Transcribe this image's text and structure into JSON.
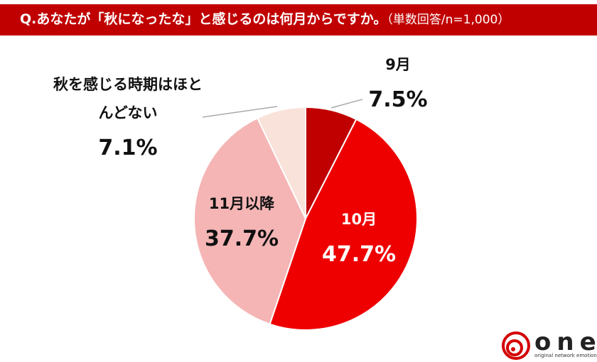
{
  "chart_data": {
    "type": "pie",
    "title": "Q.あなたが「秋になったな」と感じるのは何月からですか。",
    "subtitle": "（単数回答/n=1,000）",
    "categories": [
      "9月",
      "10月",
      "11月以降",
      "秋を感じる時期はほとんどない"
    ],
    "values": [
      7.5,
      47.7,
      37.7,
      7.1
    ],
    "value_labels": [
      "7.5%",
      "47.7%",
      "37.7%",
      "7.1%"
    ],
    "colors": [
      "#c00000",
      "#ee0000",
      "#f5b5b5",
      "#f9e2d9"
    ]
  },
  "logo": {
    "name": "one",
    "tagline": "original network emotion"
  }
}
